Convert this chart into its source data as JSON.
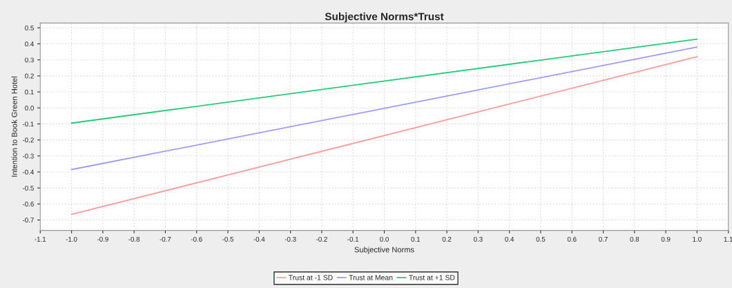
{
  "chart_data": {
    "type": "line",
    "title": "Subjective Norms*Trust",
    "xlabel": "Subjective Norms",
    "ylabel": "Intention to Book Green Hotel",
    "x": [
      -1.0,
      1.0
    ],
    "series": [
      {
        "name": "Trust at -1 SD",
        "color": "#ff9a9a",
        "values": [
          -0.665,
          0.32
        ]
      },
      {
        "name": "Trust at Mean",
        "color": "#9a9aff",
        "values": [
          -0.385,
          0.38
        ]
      },
      {
        "name": "Trust at +1 SD",
        "color": "#22cc77",
        "values": [
          -0.095,
          0.43
        ]
      }
    ],
    "xlim": [
      -1.1,
      1.1
    ],
    "ylim": [
      -0.765,
      0.53
    ],
    "xticks": [
      {
        "value": -1.1,
        "label": "-1.1"
      },
      {
        "value": -1.0,
        "label": "-1.0"
      },
      {
        "value": -0.9,
        "label": "-0.9"
      },
      {
        "value": -0.8,
        "label": "-0.8"
      },
      {
        "value": -0.7,
        "label": "-0.7"
      },
      {
        "value": -0.6,
        "label": "-0.6"
      },
      {
        "value": -0.5,
        "label": "-0.5"
      },
      {
        "value": -0.4,
        "label": "-0.4"
      },
      {
        "value": -0.3,
        "label": "-0.3"
      },
      {
        "value": -0.2,
        "label": "-0.2"
      },
      {
        "value": -0.1,
        "label": "-0.1"
      },
      {
        "value": 0,
        "label": "0.0"
      },
      {
        "value": 0.1,
        "label": "0.1"
      },
      {
        "value": 0.2,
        "label": "0.2"
      },
      {
        "value": 0.3,
        "label": "0.3"
      },
      {
        "value": 0.4,
        "label": "0.4"
      },
      {
        "value": 0.5,
        "label": "0.5"
      },
      {
        "value": 0.6,
        "label": "0.6"
      },
      {
        "value": 0.7,
        "label": "0.7"
      },
      {
        "value": 0.8,
        "label": "0.8"
      },
      {
        "value": 0.9,
        "label": "0.9"
      },
      {
        "value": 1.0,
        "label": "1.0"
      },
      {
        "value": 1.1,
        "label": "1.1"
      }
    ],
    "yticks": [
      {
        "value": -0.7,
        "label": "-0.7"
      },
      {
        "value": -0.6,
        "label": "-0.6"
      },
      {
        "value": -0.5,
        "label": "-0.5"
      },
      {
        "value": -0.4,
        "label": "-0.4"
      },
      {
        "value": -0.3,
        "label": "-0.3"
      },
      {
        "value": -0.2,
        "label": "-0.2"
      },
      {
        "value": -0.1,
        "label": "-0.1"
      },
      {
        "value": 0,
        "label": "0.0"
      },
      {
        "value": 0.1,
        "label": "0.1"
      },
      {
        "value": 0.2,
        "label": "0.2"
      },
      {
        "value": 0.3,
        "label": "0.3"
      },
      {
        "value": 0.4,
        "label": "0.4"
      },
      {
        "value": 0.5,
        "label": "0.5"
      }
    ],
    "grid": true,
    "legend": "bottom",
    "marker": "none",
    "line_style": "solid"
  }
}
